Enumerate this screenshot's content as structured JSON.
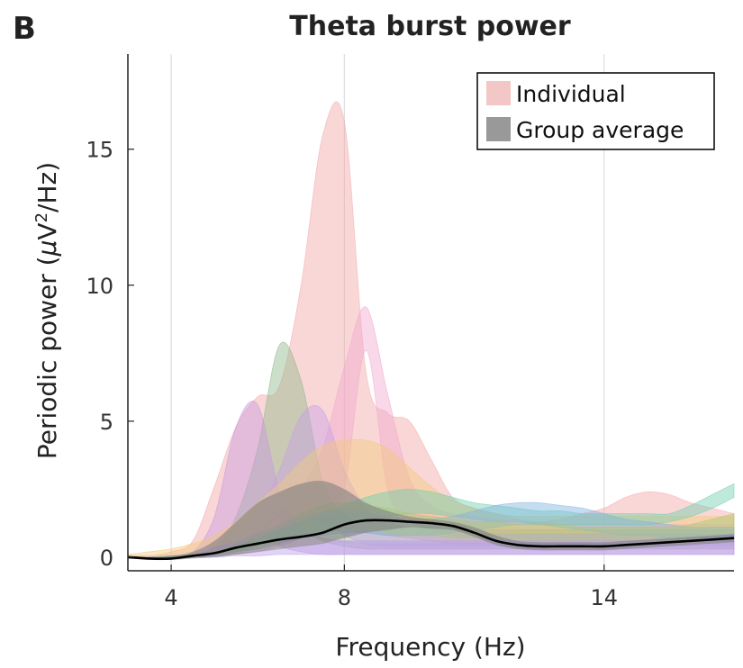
{
  "panel_label": "B",
  "chart_data": {
    "type": "area",
    "title": "Theta burst power",
    "xlabel": "Frequency (Hz)",
    "ylabel_parts": [
      "Periodic power (",
      "μ",
      "V",
      "2",
      "/Hz)"
    ],
    "xlim": [
      3,
      17
    ],
    "ylim": [
      -0.5,
      18.5
    ],
    "xticks": [
      4,
      8,
      14
    ],
    "yticks": [
      0,
      5,
      10,
      15
    ],
    "grid_x": true,
    "legend": {
      "position": "top-right",
      "entries": [
        {
          "label": "Individual",
          "color": "#f4c7c7"
        },
        {
          "label": "Group average",
          "color": "#999999"
        }
      ]
    },
    "colors": {
      "group_line": "#000000",
      "group_band": "#808080"
    },
    "x": [
      3,
      3.5,
      4,
      4.5,
      5,
      5.5,
      6,
      6.5,
      7,
      7.5,
      8,
      8.5,
      9,
      9.5,
      10,
      10.5,
      11,
      11.5,
      12,
      12.5,
      13,
      13.5,
      14,
      14.5,
      15,
      15.5,
      16,
      16.5,
      17
    ],
    "series": [
      {
        "color": "#f3a6a6",
        "upper": [
          0.05,
          0.05,
          0.2,
          0.6,
          2.6,
          4.8,
          5.9,
          6.3,
          10.0,
          15.5,
          16.0,
          6.8,
          5.3,
          5.0,
          3.6,
          2.2,
          1.8,
          1.6,
          1.4,
          1.3,
          1.4,
          1.6,
          1.8,
          2.2,
          2.4,
          2.3,
          2.0,
          1.8,
          1.6
        ],
        "lower": [
          0.0,
          0.0,
          0.0,
          0.05,
          0.1,
          0.2,
          0.3,
          0.5,
          0.7,
          0.9,
          1.0,
          0.9,
          0.8,
          0.7,
          0.6,
          0.5,
          0.5,
          0.5,
          0.5,
          0.5,
          0.5,
          0.5,
          0.5,
          0.6,
          0.7,
          0.6,
          0.6,
          0.5,
          0.5
        ]
      },
      {
        "color": "#f0a8cf",
        "upper": [
          0.0,
          0.0,
          0.05,
          0.1,
          0.2,
          0.5,
          1.0,
          1.6,
          2.5,
          4.0,
          7.0,
          9.2,
          6.0,
          2.9,
          1.9,
          1.6,
          1.5,
          1.4,
          1.3,
          1.3,
          1.2,
          1.2,
          1.2,
          1.2,
          1.2,
          1.2,
          1.2,
          1.2,
          1.2
        ],
        "lower": [
          0.0,
          0.0,
          0.0,
          0.0,
          0.05,
          0.1,
          0.2,
          0.4,
          0.7,
          1.2,
          2.5,
          7.6,
          2.5,
          1.4,
          1.0,
          0.8,
          0.7,
          0.6,
          0.6,
          0.6,
          0.6,
          0.6,
          0.6,
          0.6,
          0.6,
          0.6,
          0.6,
          0.6,
          0.6
        ]
      },
      {
        "color": "#8fb88a",
        "upper": [
          0.0,
          0.0,
          0.05,
          0.1,
          0.4,
          1.5,
          4.0,
          7.8,
          6.5,
          2.8,
          1.6,
          1.3,
          1.2,
          1.1,
          1.1,
          1.0,
          1.0,
          1.0,
          1.0,
          1.0,
          1.0,
          1.0,
          1.0,
          1.0,
          1.0,
          1.0,
          1.0,
          1.0,
          1.0
        ],
        "lower": [
          0.0,
          0.0,
          0.0,
          0.05,
          0.1,
          0.3,
          0.8,
          1.5,
          1.0,
          0.6,
          0.4,
          0.3,
          0.3,
          0.3,
          0.3,
          0.3,
          0.3,
          0.3,
          0.3,
          0.3,
          0.3,
          0.3,
          0.3,
          0.3,
          0.3,
          0.3,
          0.3,
          0.3,
          0.3
        ]
      },
      {
        "color": "#c79ae0",
        "upper": [
          0.0,
          0.0,
          0.05,
          0.2,
          1.5,
          4.8,
          5.6,
          2.4,
          1.0,
          0.7,
          0.6,
          0.5,
          0.5,
          0.5,
          0.5,
          0.5,
          0.5,
          0.5,
          0.5,
          0.5,
          0.5,
          0.5,
          0.5,
          0.5,
          0.5,
          0.5,
          0.5,
          0.5,
          0.5
        ],
        "lower": [
          0.0,
          0.0,
          0.0,
          0.05,
          0.2,
          0.6,
          0.8,
          0.4,
          0.2,
          0.1,
          0.1,
          0.1,
          0.1,
          0.1,
          0.1,
          0.1,
          0.1,
          0.1,
          0.1,
          0.1,
          0.1,
          0.1,
          0.1,
          0.1,
          0.1,
          0.1,
          0.1,
          0.1,
          0.1
        ]
      },
      {
        "color": "#c8a0e6",
        "upper": [
          0.0,
          0.0,
          0.05,
          0.1,
          0.3,
          0.8,
          1.6,
          3.2,
          5.2,
          5.4,
          3.2,
          1.8,
          1.3,
          1.1,
          1.0,
          1.0,
          1.0,
          1.0,
          1.0,
          1.0,
          1.0,
          1.0,
          1.0,
          1.0,
          1.0,
          1.0,
          1.0,
          1.0,
          1.0
        ],
        "lower": [
          0.0,
          0.0,
          0.0,
          0.05,
          0.1,
          0.3,
          0.6,
          1.0,
          1.4,
          1.3,
          0.8,
          0.5,
          0.4,
          0.4,
          0.4,
          0.4,
          0.4,
          0.4,
          0.4,
          0.4,
          0.4,
          0.4,
          0.4,
          0.4,
          0.4,
          0.4,
          0.4,
          0.4,
          0.4
        ]
      },
      {
        "color": "#f2c97a",
        "upper": [
          0.1,
          0.2,
          0.3,
          0.5,
          0.8,
          1.3,
          2.0,
          2.7,
          3.5,
          4.1,
          4.3,
          4.3,
          4.0,
          3.3,
          2.6,
          2.1,
          1.8,
          1.6,
          1.5,
          1.5,
          1.5,
          1.5,
          1.5,
          1.5,
          1.5,
          1.5,
          1.5,
          1.5,
          1.5
        ],
        "lower": [
          0.0,
          0.05,
          0.1,
          0.2,
          0.4,
          0.6,
          0.9,
          1.2,
          1.5,
          1.7,
          1.8,
          1.8,
          1.7,
          1.5,
          1.3,
          1.1,
          1.0,
          0.9,
          0.9,
          0.9,
          0.9,
          0.9,
          0.9,
          0.9,
          0.9,
          0.9,
          0.9,
          0.9,
          0.9
        ]
      },
      {
        "color": "#6fcfb0",
        "upper": [
          0.0,
          0.0,
          0.05,
          0.1,
          0.2,
          0.4,
          0.7,
          1.0,
          1.3,
          1.6,
          1.9,
          2.2,
          2.4,
          2.5,
          2.4,
          2.2,
          2.0,
          1.9,
          1.8,
          1.7,
          1.7,
          1.6,
          1.6,
          1.6,
          1.6,
          1.6,
          1.9,
          2.3,
          2.7
        ],
        "lower": [
          0.0,
          0.0,
          0.0,
          0.05,
          0.1,
          0.2,
          0.4,
          0.6,
          0.8,
          1.0,
          1.2,
          1.4,
          1.5,
          1.6,
          1.6,
          1.5,
          1.4,
          1.3,
          1.3,
          1.2,
          1.2,
          1.2,
          1.2,
          1.2,
          1.2,
          1.3,
          1.5,
          1.8,
          2.2
        ]
      },
      {
        "color": "#7fb4de",
        "upper": [
          0.0,
          0.0,
          0.05,
          0.1,
          0.2,
          0.4,
          0.7,
          1.0,
          1.3,
          1.5,
          1.6,
          1.6,
          1.5,
          1.4,
          1.4,
          1.5,
          1.7,
          1.9,
          2.0,
          2.0,
          1.9,
          1.8,
          1.6,
          1.4,
          1.3,
          1.2,
          1.1,
          1.1,
          1.1
        ],
        "lower": [
          0.0,
          0.0,
          0.0,
          0.05,
          0.1,
          0.2,
          0.3,
          0.5,
          0.7,
          0.8,
          0.9,
          0.9,
          0.8,
          0.8,
          0.8,
          0.9,
          1.0,
          1.1,
          1.2,
          1.2,
          1.1,
          1.0,
          0.9,
          0.8,
          0.8,
          0.7,
          0.7,
          0.7,
          0.7
        ]
      },
      {
        "color": "#a8c878",
        "upper": [
          0.0,
          0.0,
          0.05,
          0.1,
          0.2,
          0.4,
          0.8,
          1.2,
          1.6,
          1.9,
          2.0,
          1.9,
          1.8,
          1.6,
          1.5,
          1.4,
          1.3,
          1.3,
          1.2,
          1.2,
          1.2,
          1.1,
          1.1,
          1.1,
          1.1,
          1.1,
          1.2,
          1.4,
          1.6
        ],
        "lower": [
          0.0,
          0.0,
          0.0,
          0.05,
          0.1,
          0.2,
          0.4,
          0.6,
          0.8,
          0.9,
          1.0,
          1.0,
          0.9,
          0.8,
          0.8,
          0.7,
          0.7,
          0.7,
          0.6,
          0.6,
          0.6,
          0.6,
          0.6,
          0.6,
          0.6,
          0.6,
          0.7,
          0.8,
          0.9
        ]
      },
      {
        "color": "#b8a0e8",
        "upper": [
          0.0,
          0.0,
          0.0,
          0.05,
          0.1,
          0.15,
          0.2,
          0.3,
          0.4,
          0.5,
          0.6,
          0.6,
          0.6,
          0.6,
          0.6,
          0.6,
          0.6,
          0.6,
          0.6,
          0.6,
          0.6,
          0.6,
          0.6,
          0.6,
          0.6,
          0.6,
          0.6,
          0.6,
          0.6
        ],
        "lower": [
          0.0,
          0.0,
          0.0,
          0.0,
          0.0,
          0.05,
          0.05,
          0.1,
          0.1,
          0.1,
          0.1,
          0.1,
          0.1,
          0.1,
          0.1,
          0.1,
          0.1,
          0.1,
          0.1,
          0.1,
          0.1,
          0.1,
          0.1,
          0.1,
          0.1,
          0.1,
          0.1,
          0.1,
          0.1
        ]
      }
    ],
    "group_average": {
      "mean": [
        0.0,
        -0.05,
        -0.05,
        0.05,
        0.15,
        0.35,
        0.5,
        0.65,
        0.75,
        0.9,
        1.2,
        1.35,
        1.35,
        1.3,
        1.25,
        1.15,
        0.9,
        0.6,
        0.45,
        0.4,
        0.4,
        0.4,
        0.4,
        0.45,
        0.5,
        0.55,
        0.6,
        0.65,
        0.7
      ],
      "upper": [
        0.05,
        0.0,
        0.05,
        0.2,
        0.6,
        1.3,
        2.0,
        2.4,
        2.7,
        2.8,
        2.5,
        2.0,
        1.7,
        1.5,
        1.4,
        1.3,
        1.1,
        0.8,
        0.6,
        0.55,
        0.55,
        0.55,
        0.55,
        0.6,
        0.65,
        0.7,
        0.75,
        0.8,
        0.85
      ],
      "lower": [
        -0.05,
        -0.1,
        -0.1,
        -0.05,
        0.0,
        0.1,
        0.2,
        0.3,
        0.4,
        0.5,
        0.7,
        0.9,
        1.0,
        1.1,
        1.05,
        1.0,
        0.75,
        0.45,
        0.3,
        0.25,
        0.25,
        0.25,
        0.25,
        0.3,
        0.35,
        0.4,
        0.45,
        0.5,
        0.55
      ]
    }
  }
}
